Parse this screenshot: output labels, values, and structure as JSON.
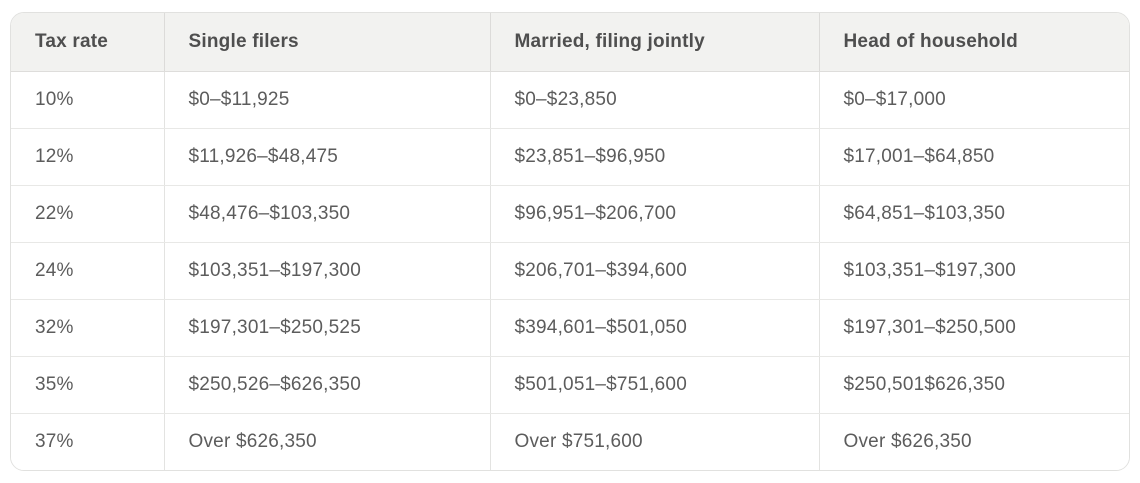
{
  "colors": {
    "header_background": "#f2f2f0",
    "header_text": "#4f4f4f",
    "body_text": "#5c5c5c",
    "border": "#e3e3e1",
    "outer_border": "#e1e1df",
    "background": "#ffffff"
  },
  "chart_data": {
    "type": "table",
    "title": "",
    "columns": [
      "Tax rate",
      "Single filers",
      "Married, filing jointly",
      "Head of household"
    ],
    "rows": [
      [
        "10%",
        "$0–$11,925",
        "$0–$23,850",
        "$0–$17,000"
      ],
      [
        "12%",
        "$11,926–$48,475",
        "$23,851–$96,950",
        "$17,001–$64,850"
      ],
      [
        "22%",
        "$48,476–$103,350",
        "$96,951–$206,700",
        "$64,851–$103,350"
      ],
      [
        "24%",
        "$103,351–$197,300",
        "$206,701–$394,600",
        "$103,351–$197,300"
      ],
      [
        "32%",
        "$197,301–$250,525",
        "$394,601–$501,050",
        "$197,301–$250,500"
      ],
      [
        "35%",
        "$250,526–$626,350",
        "$501,051–$751,600",
        "$250,501$626,350"
      ],
      [
        "37%",
        "Over $626,350",
        "Over $751,600",
        "Over $626,350"
      ]
    ]
  }
}
